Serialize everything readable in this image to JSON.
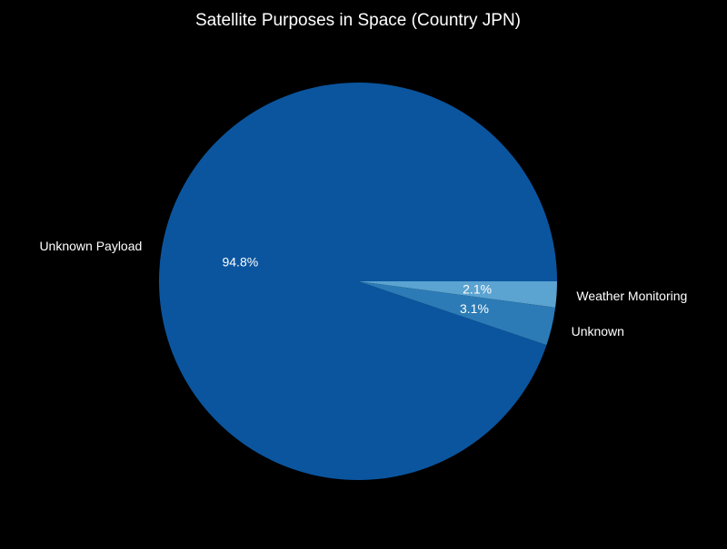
{
  "chart_data": {
    "type": "pie",
    "title": "Satellite Purposes in Space (Country JPN)",
    "start_angle_deg": 0,
    "direction": "clockwise",
    "slices": [
      {
        "label": "Weather Monitoring",
        "value": 2.1,
        "pct_label": "2.1%",
        "color": "#5ba3d0"
      },
      {
        "label": "Unknown",
        "value": 3.1,
        "pct_label": "3.1%",
        "color": "#2c7bb6"
      },
      {
        "label": "Unknown Payload",
        "value": 94.8,
        "pct_label": "94.8%",
        "color": "#0b559f"
      }
    ]
  }
}
